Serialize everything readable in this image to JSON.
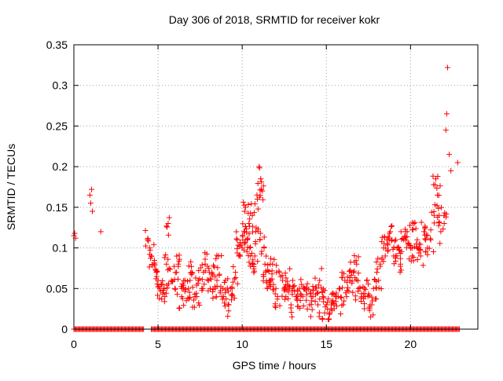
{
  "chart_data": {
    "type": "scatter",
    "title": "Day 306 of 2018, SRMTID for receiver kokr",
    "xlabel": "GPS time / hours",
    "ylabel": "SRMTID / TECUs",
    "xlim": [
      0,
      24
    ],
    "ylim": [
      0,
      0.35
    ],
    "xticks": [
      0,
      5,
      10,
      15,
      20
    ],
    "xtick_labels": [
      "0",
      "5",
      "10",
      "15",
      "20"
    ],
    "yticks": [
      0,
      0.05,
      0.1,
      0.15,
      0.2,
      0.25,
      0.3,
      0.35
    ],
    "ytick_labels": [
      "0",
      "0.05",
      "0.1",
      "0.15",
      "0.2",
      "0.25",
      "0.3",
      "0.35"
    ],
    "grid": true,
    "marker": "+",
    "color": "#ff0000",
    "series": [
      {
        "name": "SRMTID",
        "x": [
          0.0,
          0.05,
          0.1,
          0.95,
          1.0,
          1.05,
          1.1,
          1.6,
          4.4,
          4.5,
          4.6,
          4.8,
          4.9,
          5.0,
          5.1,
          5.2,
          5.3,
          5.4,
          5.6,
          5.8,
          6.0,
          6.2,
          6.4,
          6.6,
          6.8,
          7.0,
          7.2,
          7.4,
          7.6,
          7.8,
          8.0,
          8.2,
          8.4,
          8.6,
          8.8,
          9.0,
          9.2,
          9.4,
          9.6,
          9.8,
          10.0,
          10.1,
          10.2,
          10.3,
          10.4,
          10.5,
          10.6,
          10.7,
          10.8,
          10.9,
          11.0,
          11.1,
          11.2,
          11.3,
          11.4,
          11.5,
          11.6,
          11.8,
          12.0,
          12.2,
          12.4,
          12.6,
          12.8,
          13.0,
          13.2,
          13.4,
          13.6,
          13.8,
          14.0,
          14.2,
          14.4,
          14.6,
          14.8,
          15.0,
          15.2,
          15.4,
          15.6,
          15.8,
          16.0,
          16.2,
          16.4,
          16.6,
          16.8,
          17.0,
          17.2,
          17.4,
          17.6,
          17.8,
          18.0,
          18.2,
          18.4,
          18.6,
          18.8,
          19.0,
          19.2,
          19.4,
          19.6,
          19.8,
          20.0,
          20.2,
          20.4,
          20.6,
          20.8,
          21.0,
          21.2,
          21.4,
          21.5,
          21.6,
          21.7,
          21.8,
          22.0,
          22.1,
          22.15,
          22.2,
          22.3,
          22.4,
          22.8,
          5.5,
          6.1,
          6.5,
          6.9,
          7.3,
          7.7,
          8.1,
          8.5,
          8.9,
          9.3,
          9.7,
          10.15,
          10.45,
          10.75,
          11.05,
          11.35,
          11.7,
          12.1,
          12.5,
          12.9,
          13.3,
          13.7,
          14.1,
          14.5,
          14.9,
          15.3,
          15.7,
          16.1,
          16.5,
          16.9,
          17.3,
          17.7,
          18.1,
          18.5,
          18.9,
          19.3,
          19.7,
          20.1,
          20.5,
          20.9
        ],
        "y": [
          0.115,
          0.118,
          0.112,
          0.165,
          0.155,
          0.172,
          0.145,
          0.12,
          0.11,
          0.1,
          0.09,
          0.08,
          0.07,
          0.06,
          0.05,
          0.055,
          0.045,
          0.04,
          0.13,
          0.06,
          0.05,
          0.08,
          0.04,
          0.06,
          0.05,
          0.07,
          0.04,
          0.06,
          0.05,
          0.08,
          0.06,
          0.07,
          0.05,
          0.09,
          0.04,
          0.06,
          0.03,
          0.05,
          0.07,
          0.09,
          0.1,
          0.12,
          0.15,
          0.11,
          0.13,
          0.09,
          0.14,
          0.08,
          0.12,
          0.16,
          0.2,
          0.185,
          0.17,
          0.1,
          0.07,
          0.05,
          0.06,
          0.08,
          0.05,
          0.07,
          0.06,
          0.04,
          0.05,
          0.06,
          0.04,
          0.05,
          0.04,
          0.05,
          0.03,
          0.04,
          0.05,
          0.06,
          0.04,
          0.03,
          0.02,
          0.035,
          0.04,
          0.05,
          0.03,
          0.04,
          0.06,
          0.07,
          0.08,
          0.05,
          0.04,
          0.06,
          0.03,
          0.05,
          0.07,
          0.08,
          0.1,
          0.11,
          0.12,
          0.09,
          0.1,
          0.08,
          0.11,
          0.12,
          0.1,
          0.13,
          0.11,
          0.09,
          0.12,
          0.1,
          0.11,
          0.14,
          0.185,
          0.165,
          0.14,
          0.12,
          0.13,
          0.245,
          0.265,
          0.322,
          0.215,
          0.195,
          0.205,
          0.08,
          0.07,
          0.05,
          0.06,
          0.04,
          0.07,
          0.05,
          0.06,
          0.04,
          0.05,
          0.11,
          0.12,
          0.1,
          0.09,
          0.11,
          0.08,
          0.06,
          0.04,
          0.05,
          0.03,
          0.04,
          0.05,
          0.04,
          0.03,
          0.02,
          0.03,
          0.04,
          0.06,
          0.07,
          0.05,
          0.04,
          0.03,
          0.06,
          0.09,
          0.11,
          0.1,
          0.12,
          0.09,
          0.1,
          0.11
        ]
      },
      {
        "name": "SRMTID zero-level",
        "x_ranges": [
          [
            0.0,
            4.2
          ],
          [
            4.6,
            22.9
          ]
        ],
        "y": 0
      }
    ]
  }
}
